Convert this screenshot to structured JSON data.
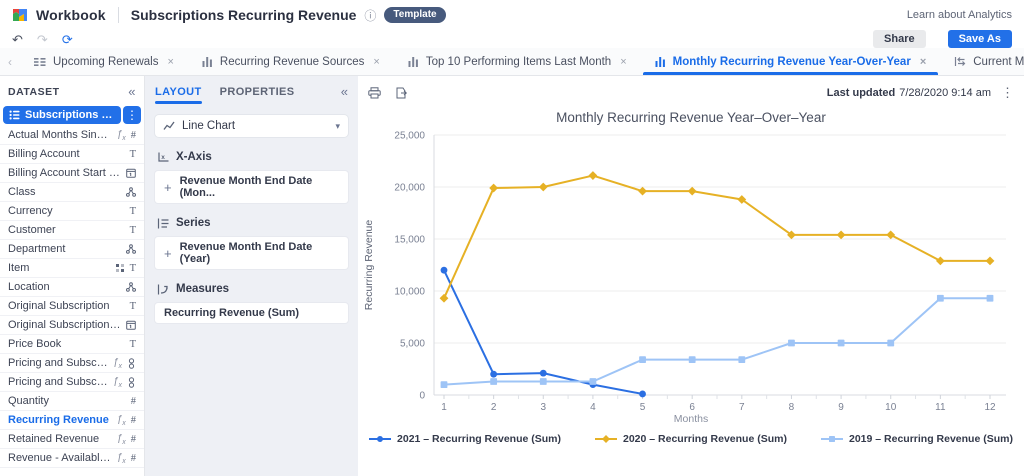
{
  "header": {
    "brand": "Workbook",
    "title": "Subscriptions Recurring Revenue",
    "badge": "Template",
    "learn_link": "Learn about Analytics",
    "share": "Share",
    "save_as": "Save As"
  },
  "tabs": {
    "items": [
      {
        "label": "Upcoming Renewals",
        "icon": "table",
        "active": false,
        "closable": true
      },
      {
        "label": "Recurring Revenue Sources",
        "icon": "bar-chart",
        "active": false,
        "closable": true
      },
      {
        "label": "Top 10 Performing Items Last Month",
        "icon": "bar-chart",
        "active": false,
        "closable": true
      },
      {
        "label": "Monthly Recurring Revenue Year-Over-Year",
        "icon": "bar-chart",
        "active": true,
        "closable": true
      },
      {
        "label": "Current Month Recur",
        "icon": "measure",
        "active": false,
        "closable": false
      }
    ]
  },
  "dataset_panel": {
    "header": "DATASET",
    "source": "Subscriptions Recur...",
    "fields": [
      {
        "name": "Actual Months Since ...",
        "fx": true,
        "type": "number",
        "highlight": false
      },
      {
        "name": "Billing Account",
        "fx": false,
        "type": "text",
        "highlight": false
      },
      {
        "name": "Billing Account Start Date",
        "fx": false,
        "type": "date",
        "highlight": false
      },
      {
        "name": "Class",
        "fx": false,
        "type": "hierarchy",
        "highlight": false
      },
      {
        "name": "Currency",
        "fx": false,
        "type": "text",
        "highlight": false
      },
      {
        "name": "Customer",
        "fx": false,
        "type": "text",
        "highlight": false
      },
      {
        "name": "Department",
        "fx": false,
        "type": "hierarchy",
        "highlight": false
      },
      {
        "name": "Item",
        "fx": false,
        "type": "text",
        "extra": "blocks",
        "highlight": false
      },
      {
        "name": "Location",
        "fx": false,
        "type": "hierarchy",
        "highlight": false
      },
      {
        "name": "Original Subscription",
        "fx": false,
        "type": "text",
        "highlight": false
      },
      {
        "name": "Original Subscription Star...",
        "fx": false,
        "type": "date",
        "highlight": false
      },
      {
        "name": "Price Book",
        "fx": false,
        "type": "text",
        "highlight": false
      },
      {
        "name": "Pricing and Subscripti...",
        "fx": true,
        "type": "link",
        "highlight": false
      },
      {
        "name": "Pricing and Subscripti...",
        "fx": true,
        "type": "link",
        "highlight": false
      },
      {
        "name": "Quantity",
        "fx": false,
        "type": "number",
        "highlight": false
      },
      {
        "name": "Recurring Revenue",
        "fx": true,
        "type": "number",
        "highlight": true
      },
      {
        "name": "Retained Revenue",
        "fx": true,
        "type": "number",
        "highlight": false
      },
      {
        "name": "Revenue - Available t...",
        "fx": true,
        "type": "number",
        "highlight": false
      }
    ]
  },
  "layout_panel": {
    "tabs": [
      "LAYOUT",
      "PROPERTIES"
    ],
    "chart_type": "Line Chart",
    "sections": [
      {
        "title": "X-Axis",
        "icon": "x-axis",
        "items": [
          {
            "label": "Revenue Month End Date (Mon...",
            "addable": true
          }
        ]
      },
      {
        "title": "Series",
        "icon": "series",
        "items": [
          {
            "label": "Revenue Month End Date (Year)",
            "addable": true
          }
        ]
      },
      {
        "title": "Measures",
        "icon": "measures",
        "items": [
          {
            "label": "Recurring Revenue (Sum)",
            "addable": false
          }
        ]
      }
    ]
  },
  "chart_panel": {
    "last_updated_label": "Last updated",
    "last_updated_value": "7/28/2020 9:14 am"
  },
  "chart_data": {
    "type": "line",
    "title": "Monthly Recurring Revenue Year–Over–Year",
    "xlabel": "Months",
    "ylabel": "Recurring Revenue",
    "x": [
      1,
      2,
      3,
      4,
      5,
      6,
      7,
      8,
      9,
      10,
      11,
      12
    ],
    "ylim": [
      0,
      25000
    ],
    "yticks": [
      0,
      5000,
      10000,
      15000,
      20000,
      25000
    ],
    "grid": true,
    "legend_position": "bottom",
    "series": [
      {
        "name": "2021 – Recurring Revenue (Sum)",
        "color": "#2b6fe2",
        "marker": "circle",
        "values": [
          12000,
          2000,
          2100,
          1000,
          100,
          null,
          null,
          null,
          null,
          null,
          null,
          null
        ]
      },
      {
        "name": "2020 – Recurring Revenue (Sum)",
        "color": "#e6b125",
        "marker": "diamond",
        "values": [
          9300,
          19900,
          20000,
          21100,
          19600,
          19600,
          18800,
          15400,
          15400,
          15400,
          12900,
          12900
        ]
      },
      {
        "name": "2019 – Recurring Revenue (Sum)",
        "color": "#9ec4f6",
        "marker": "square",
        "values": [
          1000,
          1300,
          1300,
          1300,
          3400,
          3400,
          3400,
          5000,
          5000,
          5000,
          9300,
          9300
        ]
      }
    ]
  }
}
